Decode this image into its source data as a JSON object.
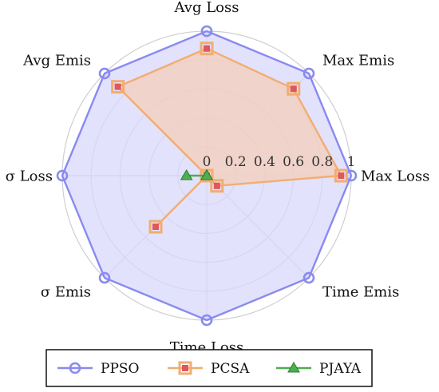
{
  "chart_data": {
    "type": "radar",
    "axes": [
      "Max Loss",
      "Max Emis",
      "Avg Loss",
      "Avg Emis",
      "σ Loss",
      "σ Emis",
      "Time Loss",
      "Time Emis"
    ],
    "ticks": [
      "0",
      "0.2",
      "0.4",
      "0.6",
      "0.8",
      "1"
    ],
    "rmax": 1,
    "grid": true,
    "legend_position": "bottom",
    "series": [
      {
        "name": "PPSO",
        "values": [
          1,
          1,
          1,
          1,
          1,
          1,
          1,
          1
        ],
        "color": "#8a8af0",
        "fill": "#d8d8fb",
        "marker": "circle"
      },
      {
        "name": "PCSA",
        "values": [
          0.93,
          0.85,
          0.88,
          0.87,
          0.0,
          0.5,
          0.0,
          0.1
        ],
        "color": "#f2ad70",
        "fill": "#f4cdb9",
        "marker": "square"
      },
      {
        "name": "PJAYA",
        "values": [
          0.0,
          0.0,
          0.0,
          0.0,
          0.14,
          0.0,
          0.0,
          0.0
        ],
        "color": "#4caf50",
        "fill": "#8cc98a",
        "marker": "triangle"
      }
    ]
  }
}
